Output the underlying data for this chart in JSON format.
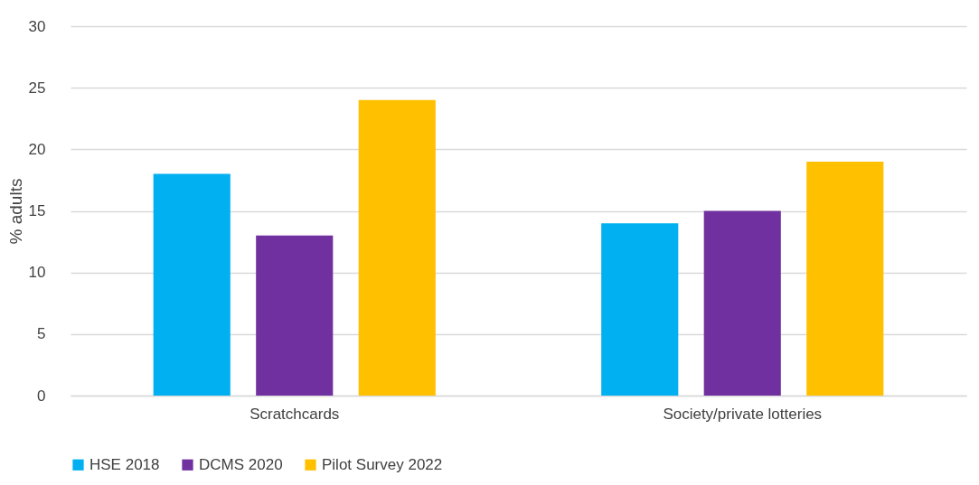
{
  "chart_data": {
    "type": "bar",
    "ylabel": "% adults",
    "categories": [
      "Scratchcards",
      "Society/private lotteries"
    ],
    "series": [
      {
        "name": "HSE 2018",
        "color": "#00b0f0",
        "values": [
          18,
          14
        ]
      },
      {
        "name": "DCMS 2020",
        "color": "#7030a0",
        "values": [
          13,
          15
        ]
      },
      {
        "name": "Pilot Survey 2022",
        "color": "#ffc000",
        "values": [
          24,
          19
        ]
      }
    ],
    "ylim": [
      0,
      30
    ],
    "yticks": [
      0,
      5,
      10,
      15,
      20,
      25,
      30
    ],
    "grid": "y",
    "legend": "bottom"
  }
}
